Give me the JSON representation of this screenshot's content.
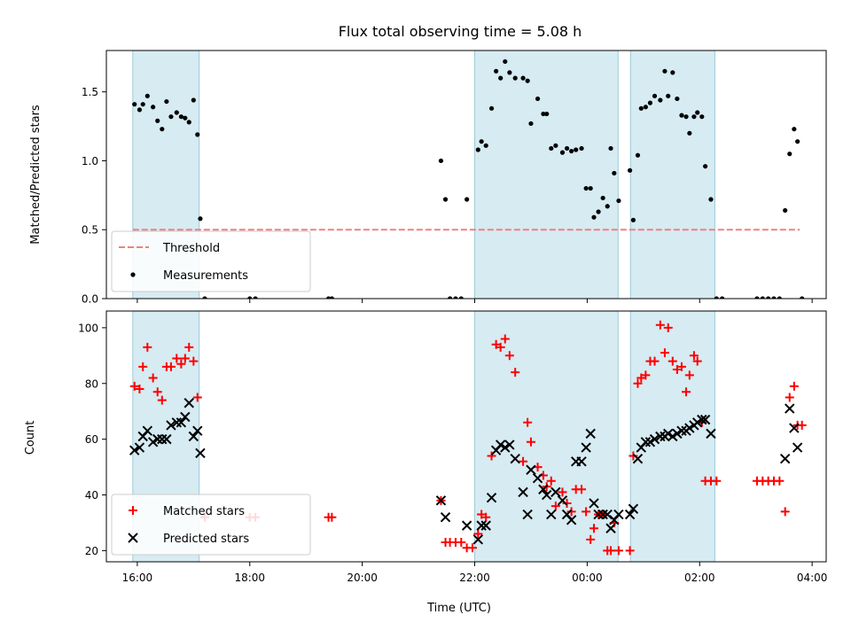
{
  "chart_data": [
    {
      "type": "scatter",
      "title": "Flux total observing time = 5.08 h",
      "xlabel": "",
      "ylabel": "Matched/Predicted stars",
      "x_unit": "hours since 16:00 UTC",
      "xlim": [
        -0.55,
        12.25
      ],
      "ylim": [
        0,
        1.8
      ],
      "yticks": [
        0.0,
        0.5,
        1.0,
        1.5
      ],
      "ytick_labels": [
        "0.0",
        "0.5",
        "1.0",
        "1.5"
      ],
      "shaded_intervals": [
        [
          -0.08,
          1.1
        ],
        [
          6.0,
          8.55
        ],
        [
          8.77,
          10.27
        ]
      ],
      "threshold": {
        "name": "Threshold",
        "value": 0.5,
        "x_range": [
          -0.08,
          11.78
        ],
        "color": "#f08080"
      },
      "legend": {
        "location": "lower-left",
        "entries": [
          "Threshold",
          "Measurements"
        ]
      },
      "series": [
        {
          "name": "Measurements",
          "color": "#000000",
          "points": [
            [
              -0.05,
              1.41
            ],
            [
              0.04,
              1.37
            ],
            [
              0.1,
              1.41
            ],
            [
              0.18,
              1.47
            ],
            [
              0.28,
              1.39
            ],
            [
              0.36,
              1.29
            ],
            [
              0.44,
              1.23
            ],
            [
              0.52,
              1.43
            ],
            [
              0.6,
              1.32
            ],
            [
              0.7,
              1.35
            ],
            [
              0.78,
              1.32
            ],
            [
              0.85,
              1.31
            ],
            [
              0.92,
              1.28
            ],
            [
              1.0,
              1.44
            ],
            [
              1.07,
              1.19
            ],
            [
              1.12,
              0.58
            ],
            [
              1.2,
              0.0
            ],
            [
              2.0,
              0.0
            ],
            [
              2.1,
              0.0
            ],
            [
              3.4,
              0.0
            ],
            [
              3.46,
              0.0
            ],
            [
              5.4,
              1.0
            ],
            [
              5.48,
              0.72
            ],
            [
              5.56,
              0.0
            ],
            [
              5.66,
              0.0
            ],
            [
              5.76,
              0.0
            ],
            [
              5.86,
              0.72
            ],
            [
              6.06,
              1.08
            ],
            [
              6.12,
              1.14
            ],
            [
              6.2,
              1.11
            ],
            [
              6.3,
              1.38
            ],
            [
              6.38,
              1.65
            ],
            [
              6.46,
              1.6
            ],
            [
              6.54,
              1.72
            ],
            [
              6.62,
              1.64
            ],
            [
              6.72,
              1.6
            ],
            [
              6.86,
              1.6
            ],
            [
              6.94,
              1.58
            ],
            [
              7.0,
              1.27
            ],
            [
              7.12,
              1.45
            ],
            [
              7.22,
              1.34
            ],
            [
              7.28,
              1.34
            ],
            [
              7.36,
              1.09
            ],
            [
              7.44,
              1.11
            ],
            [
              7.56,
              1.06
            ],
            [
              7.64,
              1.09
            ],
            [
              7.72,
              1.07
            ],
            [
              7.8,
              1.08
            ],
            [
              7.9,
              1.09
            ],
            [
              7.98,
              0.8
            ],
            [
              8.06,
              0.8
            ],
            [
              8.12,
              0.59
            ],
            [
              8.2,
              0.63
            ],
            [
              8.28,
              0.73
            ],
            [
              8.36,
              0.67
            ],
            [
              8.42,
              1.09
            ],
            [
              8.48,
              0.91
            ],
            [
              8.56,
              0.71
            ],
            [
              8.76,
              0.93
            ],
            [
              8.82,
              0.57
            ],
            [
              8.9,
              1.04
            ],
            [
              8.96,
              1.38
            ],
            [
              9.04,
              1.39
            ],
            [
              9.12,
              1.42
            ],
            [
              9.2,
              1.47
            ],
            [
              9.3,
              1.44
            ],
            [
              9.38,
              1.65
            ],
            [
              9.44,
              1.47
            ],
            [
              9.52,
              1.64
            ],
            [
              9.6,
              1.45
            ],
            [
              9.68,
              1.33
            ],
            [
              9.76,
              1.32
            ],
            [
              9.82,
              1.2
            ],
            [
              9.9,
              1.32
            ],
            [
              9.96,
              1.35
            ],
            [
              10.04,
              1.32
            ],
            [
              10.1,
              0.96
            ],
            [
              10.2,
              0.72
            ],
            [
              10.3,
              0.0
            ],
            [
              10.4,
              0.0
            ],
            [
              11.02,
              0.0
            ],
            [
              11.12,
              0.0
            ],
            [
              11.22,
              0.0
            ],
            [
              11.32,
              0.0
            ],
            [
              11.42,
              0.0
            ],
            [
              11.52,
              0.64
            ],
            [
              11.6,
              1.05
            ],
            [
              11.68,
              1.23
            ],
            [
              11.74,
              1.14
            ],
            [
              11.82,
              0.0
            ]
          ]
        }
      ]
    },
    {
      "type": "scatter",
      "title": "",
      "xlabel": "Time (UTC)",
      "ylabel": "Count",
      "x_unit": "hours since 16:00 UTC",
      "xlim": [
        -0.55,
        12.25
      ],
      "ylim": [
        16,
        106
      ],
      "xticks": [
        0,
        2,
        4,
        6,
        8,
        10,
        12
      ],
      "xtick_labels": [
        "16:00",
        "18:00",
        "20:00",
        "22:00",
        "00:00",
        "02:00",
        "04:00"
      ],
      "yticks": [
        20,
        40,
        60,
        80,
        100
      ],
      "ytick_labels": [
        "20",
        "40",
        "60",
        "80",
        "100"
      ],
      "shaded_intervals": [
        [
          -0.08,
          1.1
        ],
        [
          6.0,
          8.55
        ],
        [
          8.77,
          10.27
        ]
      ],
      "legend": {
        "location": "lower-left",
        "entries": [
          "Matched stars",
          "Predicted stars"
        ]
      },
      "series": [
        {
          "name": "Matched stars",
          "marker": "plus",
          "color": "#ff0000",
          "points": [
            [
              -0.05,
              79
            ],
            [
              0.04,
              78
            ],
            [
              0.1,
              86
            ],
            [
              0.18,
              93
            ],
            [
              0.28,
              82
            ],
            [
              0.36,
              77
            ],
            [
              0.44,
              74
            ],
            [
              0.52,
              86
            ],
            [
              0.6,
              86
            ],
            [
              0.7,
              89
            ],
            [
              0.78,
              87
            ],
            [
              0.85,
              89
            ],
            [
              0.92,
              93
            ],
            [
              1.0,
              88
            ],
            [
              1.07,
              75
            ],
            [
              1.2,
              32
            ],
            [
              2.0,
              32
            ],
            [
              2.1,
              32
            ],
            [
              3.4,
              32
            ],
            [
              3.46,
              32
            ],
            [
              5.4,
              38
            ],
            [
              5.48,
              23
            ],
            [
              5.56,
              23
            ],
            [
              5.66,
              23
            ],
            [
              5.76,
              23
            ],
            [
              5.86,
              21
            ],
            [
              5.96,
              21
            ],
            [
              6.06,
              26
            ],
            [
              6.12,
              33
            ],
            [
              6.2,
              32
            ],
            [
              6.3,
              54
            ],
            [
              6.38,
              94
            ],
            [
              6.46,
              93
            ],
            [
              6.54,
              96
            ],
            [
              6.62,
              90
            ],
            [
              6.72,
              84
            ],
            [
              6.86,
              52
            ],
            [
              6.94,
              66
            ],
            [
              7.0,
              59
            ],
            [
              7.12,
              50
            ],
            [
              7.22,
              47
            ],
            [
              7.28,
              43
            ],
            [
              7.36,
              45
            ],
            [
              7.44,
              36
            ],
            [
              7.56,
              41
            ],
            [
              7.64,
              37
            ],
            [
              7.72,
              34
            ],
            [
              7.8,
              42
            ],
            [
              7.9,
              42
            ],
            [
              7.98,
              34
            ],
            [
              8.06,
              24
            ],
            [
              8.12,
              28
            ],
            [
              8.2,
              33
            ],
            [
              8.28,
              33
            ],
            [
              8.36,
              20
            ],
            [
              8.42,
              20
            ],
            [
              8.48,
              30
            ],
            [
              8.56,
              20
            ],
            [
              8.76,
              20
            ],
            [
              8.82,
              54
            ],
            [
              8.9,
              80
            ],
            [
              8.96,
              82
            ],
            [
              9.04,
              83
            ],
            [
              9.12,
              88
            ],
            [
              9.2,
              88
            ],
            [
              9.3,
              101
            ],
            [
              9.38,
              91
            ],
            [
              9.44,
              100
            ],
            [
              9.52,
              88
            ],
            [
              9.6,
              85
            ],
            [
              9.68,
              86
            ],
            [
              9.76,
              77
            ],
            [
              9.82,
              83
            ],
            [
              9.9,
              90
            ],
            [
              9.96,
              88
            ],
            [
              10.04,
              66
            ],
            [
              10.1,
              45
            ],
            [
              10.2,
              45
            ],
            [
              10.3,
              45
            ],
            [
              11.02,
              45
            ],
            [
              11.12,
              45
            ],
            [
              11.22,
              45
            ],
            [
              11.32,
              45
            ],
            [
              11.42,
              45
            ],
            [
              11.52,
              34
            ],
            [
              11.6,
              75
            ],
            [
              11.68,
              79
            ],
            [
              11.74,
              65
            ],
            [
              11.82,
              65
            ]
          ]
        },
        {
          "name": "Predicted stars",
          "marker": "x",
          "color": "#000000",
          "points": [
            [
              -0.05,
              56
            ],
            [
              0.04,
              57
            ],
            [
              0.1,
              61
            ],
            [
              0.18,
              63
            ],
            [
              0.28,
              59
            ],
            [
              0.36,
              60
            ],
            [
              0.44,
              60
            ],
            [
              0.52,
              60
            ],
            [
              0.6,
              65
            ],
            [
              0.7,
              66
            ],
            [
              0.78,
              66
            ],
            [
              0.85,
              68
            ],
            [
              0.92,
              73
            ],
            [
              1.0,
              61
            ],
            [
              1.07,
              63
            ],
            [
              1.12,
              55
            ],
            [
              5.4,
              38
            ],
            [
              5.48,
              32
            ],
            [
              5.86,
              29
            ],
            [
              6.06,
              24
            ],
            [
              6.12,
              29
            ],
            [
              6.2,
              29
            ],
            [
              6.3,
              39
            ],
            [
              6.38,
              56
            ],
            [
              6.46,
              58
            ],
            [
              6.54,
              57
            ],
            [
              6.62,
              58
            ],
            [
              6.72,
              53
            ],
            [
              6.86,
              41
            ],
            [
              6.94,
              33
            ],
            [
              7.0,
              49
            ],
            [
              7.12,
              46
            ],
            [
              7.22,
              42
            ],
            [
              7.28,
              40
            ],
            [
              7.36,
              33
            ],
            [
              7.44,
              41
            ],
            [
              7.56,
              38
            ],
            [
              7.64,
              33
            ],
            [
              7.72,
              31
            ],
            [
              7.8,
              52
            ],
            [
              7.9,
              52
            ],
            [
              7.98,
              57
            ],
            [
              8.06,
              62
            ],
            [
              8.12,
              37
            ],
            [
              8.2,
              33
            ],
            [
              8.28,
              33
            ],
            [
              8.36,
              33
            ],
            [
              8.42,
              28
            ],
            [
              8.48,
              31
            ],
            [
              8.56,
              33
            ],
            [
              8.76,
              33
            ],
            [
              8.82,
              35
            ],
            [
              8.9,
              53
            ],
            [
              8.96,
              57
            ],
            [
              9.04,
              59
            ],
            [
              9.12,
              59
            ],
            [
              9.2,
              60
            ],
            [
              9.3,
              61
            ],
            [
              9.38,
              61
            ],
            [
              9.44,
              62
            ],
            [
              9.52,
              61
            ],
            [
              9.6,
              62
            ],
            [
              9.68,
              63
            ],
            [
              9.76,
              63
            ],
            [
              9.82,
              64
            ],
            [
              9.9,
              65
            ],
            [
              9.96,
              66
            ],
            [
              10.04,
              67
            ],
            [
              10.1,
              67
            ],
            [
              10.2,
              62
            ],
            [
              11.52,
              53
            ],
            [
              11.6,
              71
            ],
            [
              11.68,
              64
            ],
            [
              11.74,
              57
            ]
          ]
        }
      ]
    }
  ]
}
